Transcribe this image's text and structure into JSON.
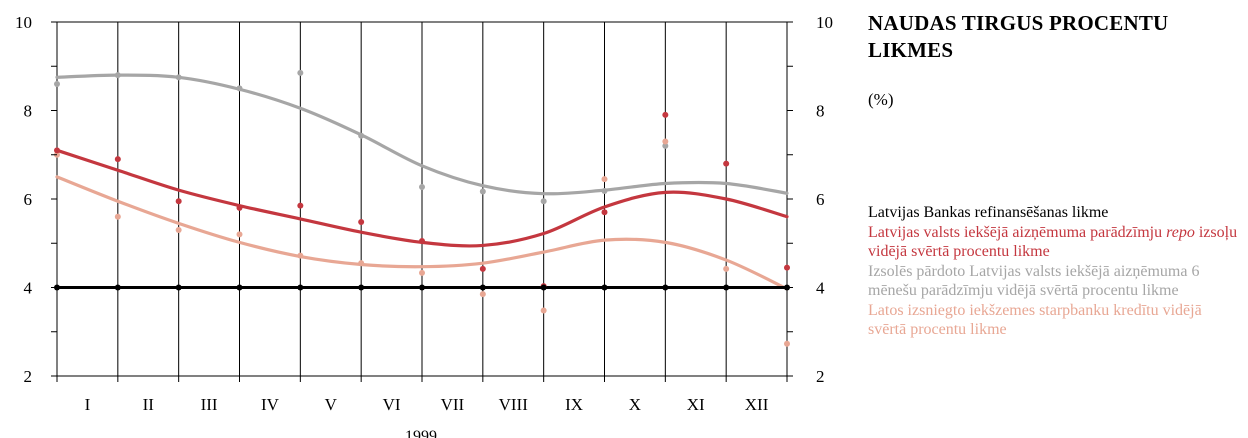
{
  "title": "NAUDAS TIRGUS PROCENTU LIKMES",
  "unit": "(%)",
  "colors": {
    "refinance": "#000000",
    "repo": "#c4373f",
    "bonds": "#a6a6a6",
    "interbank": "#e8a794",
    "grid": "#000000"
  },
  "legend": [
    {
      "key": "refinance",
      "parts": [
        {
          "text": "Latvijas Bankas refinansēšanas likme"
        }
      ]
    },
    {
      "key": "repo",
      "parts": [
        {
          "text": "Latvijas valsts iekšējā aizņēmuma parādzīmju "
        },
        {
          "text": "repo",
          "italic": true
        },
        {
          "text": " izsoļu vidējā svērtā procentu likme"
        }
      ]
    },
    {
      "key": "bonds",
      "parts": [
        {
          "text": "Izsolēs pārdoto Latvijas valsts iekšējā aizņēmuma 6 mēnešu parādzīmju vidējā svērtā procentu likme"
        }
      ]
    },
    {
      "key": "interbank",
      "parts": [
        {
          "text": "Latos izsniegto iekšzemes starpbanku kredītu vidējā svērtā procentu likme"
        }
      ]
    }
  ],
  "chart_data": {
    "type": "scatter",
    "title": "NAUDAS TIRGUS PROCENTU LIKMES",
    "xlabel": "1999",
    "ylabel": "(%)",
    "categories": [
      "I",
      "II",
      "III",
      "IV",
      "V",
      "VI",
      "VII",
      "VIII",
      "IX",
      "X",
      "XI",
      "XII"
    ],
    "ylim": [
      2,
      10
    ],
    "yticks": [
      2,
      4,
      6,
      8,
      10
    ],
    "yaxis_both_sides": true,
    "grid": true,
    "x_points": [
      0,
      1,
      2,
      3,
      4,
      5,
      6,
      7,
      8,
      9,
      10,
      11,
      12
    ],
    "series": [
      {
        "name": "Latvijas Bankas refinansēšanas likme",
        "key": "refinance",
        "points": [
          4,
          4,
          4,
          4,
          4,
          4,
          4,
          4,
          4,
          4,
          4,
          4,
          4
        ],
        "trend": [
          4,
          4,
          4,
          4,
          4,
          4,
          4,
          4,
          4,
          4,
          4,
          4,
          4
        ]
      },
      {
        "name": "Latvijas valsts iekšējā aizņēmuma parādzīmju repo izsoļu vidējā svērtā procentu likme",
        "key": "repo",
        "points": [
          7.1,
          6.9,
          5.95,
          5.8,
          5.85,
          5.48,
          5.05,
          4.42,
          4.03,
          5.7,
          7.9,
          6.8,
          4.45
        ],
        "trend": [
          7.1,
          6.65,
          6.2,
          5.85,
          5.55,
          5.25,
          5.02,
          4.95,
          5.22,
          5.82,
          6.15,
          6.0,
          5.6
        ]
      },
      {
        "name": "Izsolēs pārdoto Latvijas valsts iekšējā aizņēmuma 6 mēnešu parādzīmju vidējā svērtā procentu likme",
        "key": "bonds",
        "points": [
          8.6,
          8.8,
          8.75,
          8.5,
          8.85,
          7.43,
          6.27,
          6.17,
          5.95,
          6.18,
          7.2
        ],
        "x_offset": 0,
        "trend": [
          8.75,
          8.8,
          8.75,
          8.48,
          8.05,
          7.45,
          6.75,
          6.3,
          6.12,
          6.2,
          6.35,
          6.35,
          6.13
        ]
      },
      {
        "name": "Latos izsniegto iekšzemes starpbanku kredītu vidējā svērtā procentu likme",
        "key": "interbank",
        "points": [
          7.0,
          5.6,
          5.3,
          5.2,
          4.72,
          4.55,
          4.33,
          3.85,
          3.48,
          6.45,
          7.3,
          4.42,
          2.73
        ],
        "trend": [
          6.5,
          5.95,
          5.45,
          5.02,
          4.7,
          4.52,
          4.47,
          4.55,
          4.8,
          5.07,
          5.02,
          4.62,
          3.97
        ]
      }
    ]
  }
}
